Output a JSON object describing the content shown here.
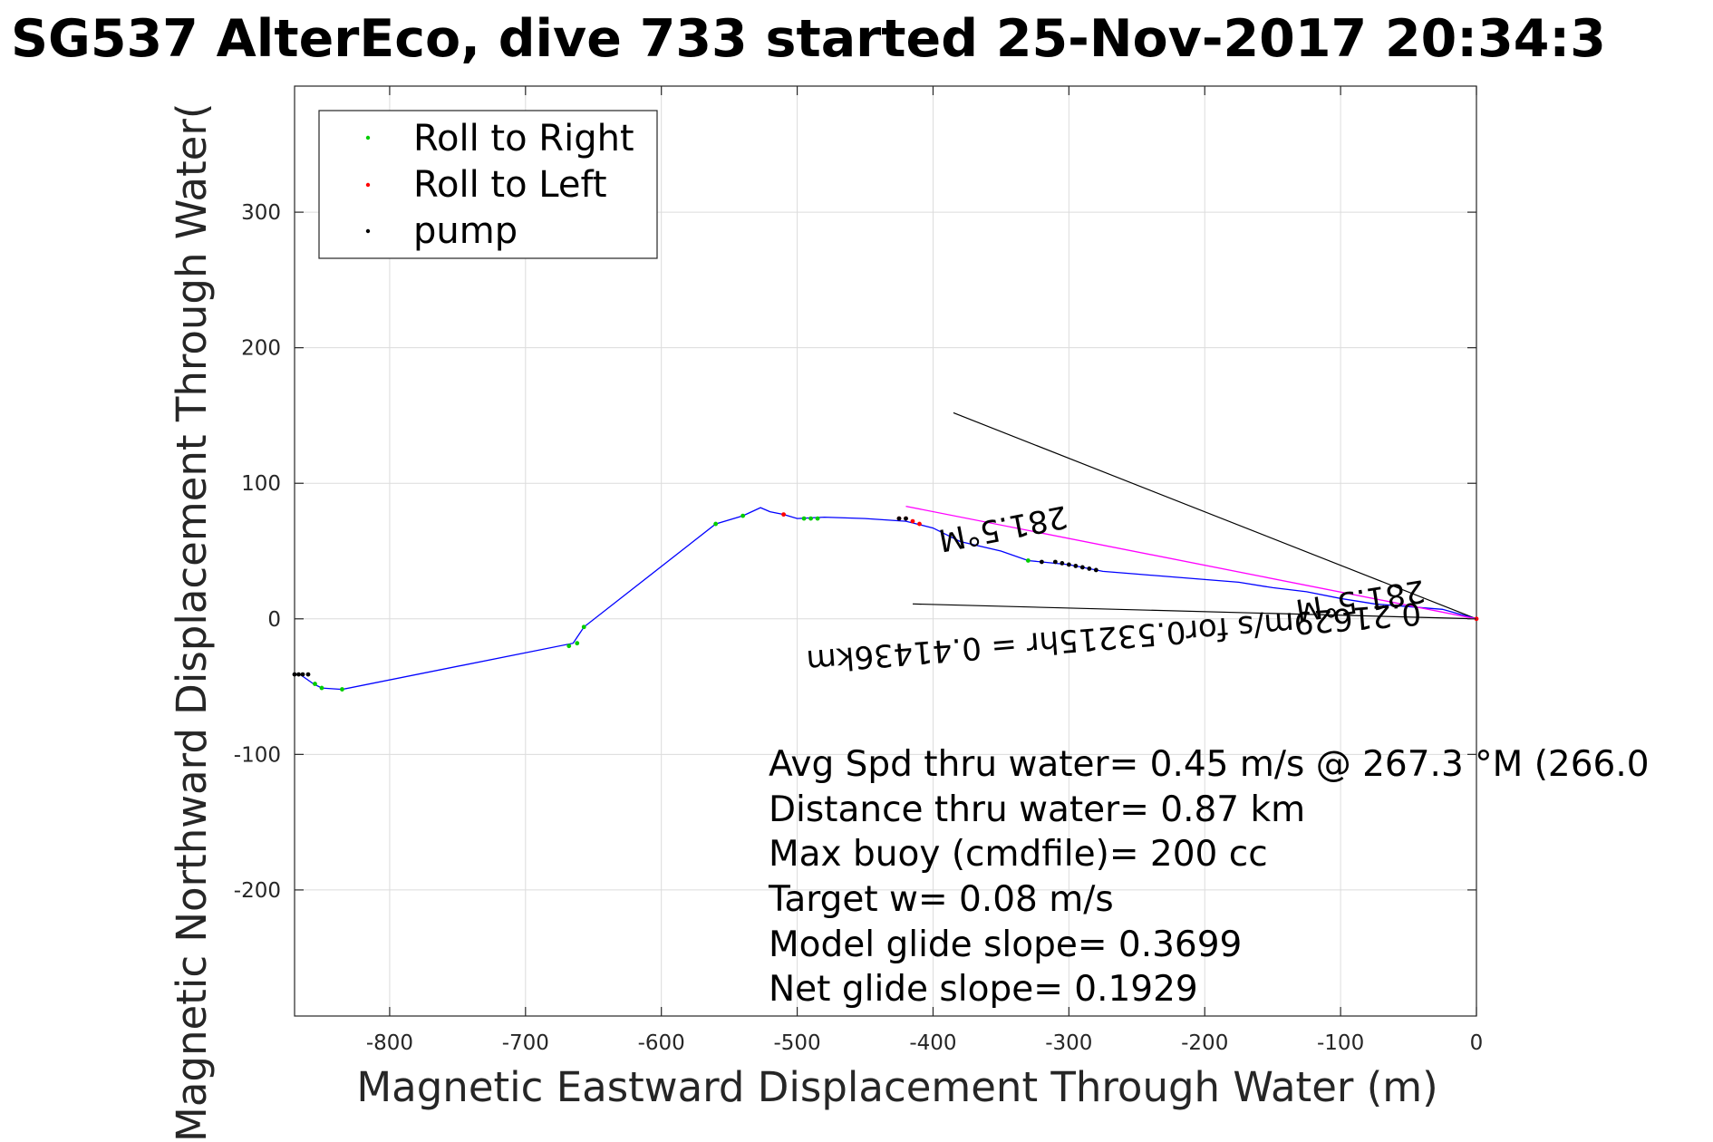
{
  "chart_data": {
    "type": "line",
    "title": "SG537 AlterEco, dive 733 started 25-Nov-2017 20:34:3",
    "xlabel": "Magnetic Eastward Displacement Through Water (m)",
    "ylabel": "Magnetic Northward Displacement Through Water(",
    "xlim": [
      -870,
      0
    ],
    "ylim": [
      -293,
      393
    ],
    "xticks": [
      -800,
      -700,
      -600,
      -500,
      -400,
      -300,
      -200,
      -100,
      0
    ],
    "yticks": [
      -200,
      -100,
      0,
      100,
      200,
      300
    ],
    "grid": true,
    "legend": {
      "position": "top-left",
      "entries": [
        {
          "label": "Roll to Right",
          "color": "#00cc00",
          "marker": "dot"
        },
        {
          "label": "Roll to Left",
          "color": "#ff0000",
          "marker": "dot"
        },
        {
          "label": "pump",
          "color": "#000000",
          "marker": "dot"
        }
      ]
    },
    "series": [
      {
        "kind": "track",
        "color": "#0000ff",
        "x": [
          0,
          -25,
          -50,
          -75,
          -100,
          -125,
          -150,
          -175,
          -200,
          -225,
          -250,
          -275,
          -300,
          -320,
          -330,
          -350,
          -380,
          -400,
          -420,
          -450,
          -480,
          -500,
          -510,
          -520,
          -527,
          -540,
          -560,
          -657,
          -665,
          -835,
          -850,
          -856,
          -866,
          -870
        ],
        "y": [
          0,
          7,
          9,
          11,
          15,
          20,
          23,
          27,
          29,
          31,
          33,
          35,
          40,
          42,
          43,
          50,
          57,
          67,
          72,
          74,
          75,
          74,
          77,
          79,
          82,
          76,
          70,
          -6,
          -18,
          -52,
          -51,
          -48,
          -41,
          -41
        ]
      },
      {
        "kind": "depth-averaged",
        "color": "#ff00ff",
        "x": [
          0,
          -420
        ],
        "y": [
          0,
          83
        ]
      }
    ],
    "markers": {
      "roll_right": {
        "color": "#00cc00",
        "x": [
          -330,
          -485,
          -490,
          -495,
          -540,
          -560,
          -657,
          -662,
          -668,
          -835,
          -850,
          -855
        ],
        "y": [
          43,
          74,
          74,
          74,
          76,
          70,
          -6,
          -18,
          -20,
          -52,
          -51,
          -48
        ]
      },
      "roll_left": {
        "color": "#ff0000",
        "x": [
          -510,
          -410,
          -415,
          -420,
          -425,
          0
        ],
        "y": [
          77,
          70,
          72,
          74,
          74,
          0
        ]
      },
      "pump": {
        "color": "#000000",
        "x": [
          -425,
          -420,
          -320,
          -310,
          -305,
          -300,
          -295,
          -290,
          -285,
          -280,
          -870,
          -867,
          -864,
          -860
        ],
        "y": [
          74,
          74,
          42,
          42,
          41,
          40,
          39,
          38,
          37,
          36,
          -41,
          -41,
          -41,
          -41
        ]
      }
    },
    "reference_lines": [
      {
        "x": [
          0,
          -385
        ],
        "y": [
          0,
          152
        ]
      },
      {
        "x": [
          0,
          -415
        ],
        "y": [
          0,
          11
        ]
      }
    ],
    "annotations": [
      {
        "text": "0.21629m/s for0.53215hr = 0.41436km"
      },
      {
        "text": "281.5°M"
      },
      {
        "text": "281.5°M"
      }
    ],
    "stats": [
      "Avg Spd thru water=  0.45 m/s @ 267.3 °M (266.0",
      "Distance thru water=  0.87 km",
      "Max buoy (cmdfile)= 200 cc",
      "Target w= 0.08 m/s",
      "Model glide slope= 0.3699",
      "Net glide slope= 0.1929"
    ]
  }
}
